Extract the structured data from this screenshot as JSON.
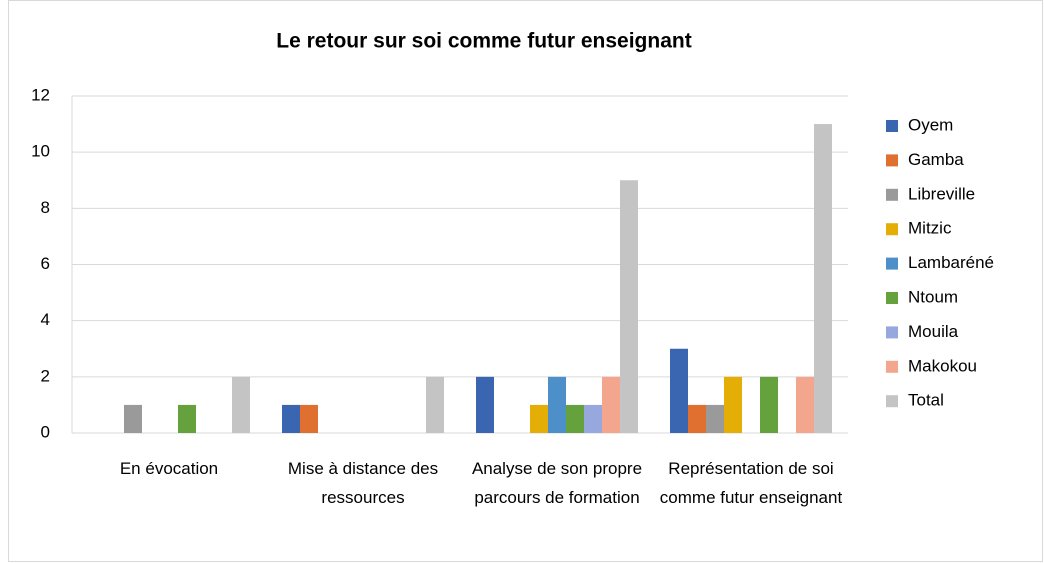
{
  "chart_data": {
    "type": "bar",
    "title": "Le retour sur soi comme futur enseignant",
    "categories": [
      "En évocation",
      "Mise à distance des ressources",
      "Analyse de son propre parcours de formation",
      "Représentation de soi comme futur enseignant"
    ],
    "series": [
      {
        "name": "Oyem",
        "color": "#3a65b0",
        "values": [
          0,
          1,
          2,
          3
        ]
      },
      {
        "name": "Gamba",
        "color": "#e0702f",
        "values": [
          0,
          1,
          0,
          1
        ]
      },
      {
        "name": "Libreville",
        "color": "#9a9a9a",
        "values": [
          1,
          0,
          0,
          1
        ]
      },
      {
        "name": "Mitzic",
        "color": "#e5ae06",
        "values": [
          0,
          0,
          1,
          2
        ]
      },
      {
        "name": "Lambaréné",
        "color": "#4d8fc8",
        "values": [
          0,
          0,
          2,
          0
        ]
      },
      {
        "name": "Ntoum",
        "color": "#65a13c",
        "values": [
          1,
          0,
          1,
          2
        ]
      },
      {
        "name": "Mouila",
        "color": "#97a8de",
        "values": [
          0,
          0,
          1,
          0
        ]
      },
      {
        "name": "Makokou",
        "color": "#f4a58e",
        "values": [
          0,
          0,
          2,
          2
        ]
      },
      {
        "name": "Total",
        "color": "#c4c4c4",
        "values": [
          2,
          2,
          9,
          11
        ]
      }
    ],
    "ylim": [
      0,
      12
    ],
    "yticks": [
      0,
      2,
      4,
      6,
      8,
      10,
      12
    ],
    "grid": true,
    "legend": "right"
  }
}
